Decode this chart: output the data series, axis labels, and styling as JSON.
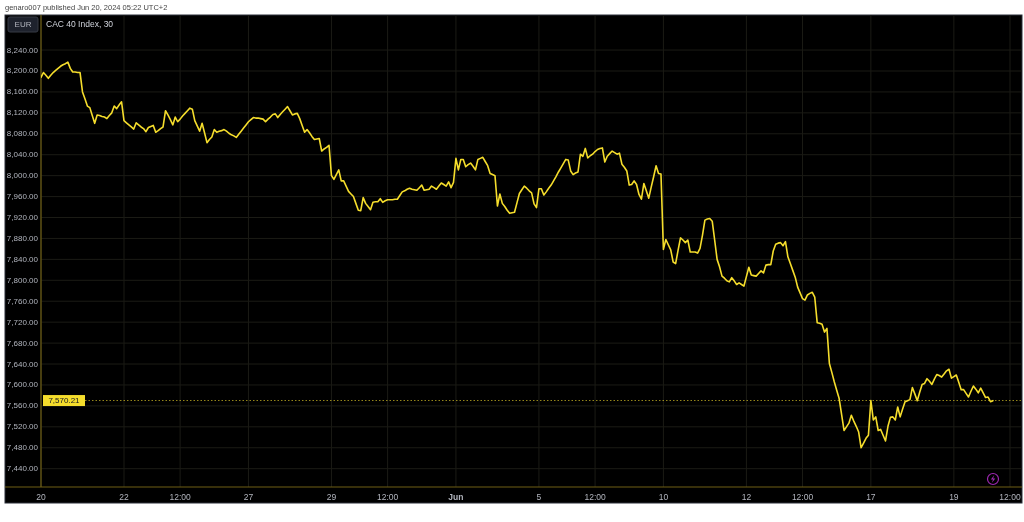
{
  "chart_data": {
    "type": "line",
    "title": "CAC 40 Index, 30",
    "ylabel": "EUR",
    "annotations": [
      "genaro007 published Jun 20, 2024 05:22 UTC+2"
    ],
    "color": "#f5dd2c",
    "grid": true,
    "ylim": [
      7405,
      8307
    ],
    "yticks": [
      {
        "value": 7440,
        "label": "7,440.00"
      },
      {
        "value": 7480,
        "label": "7,480.00"
      },
      {
        "value": 7520,
        "label": "7,520.00"
      },
      {
        "value": 7560,
        "label": "7,560.00"
      },
      {
        "value": 7600,
        "label": "7,600.00"
      },
      {
        "value": 7640,
        "label": "7,640.00"
      },
      {
        "value": 7680,
        "label": "7,680.00"
      },
      {
        "value": 7720,
        "label": "7,720.00"
      },
      {
        "value": 7760,
        "label": "7,760.00"
      },
      {
        "value": 7800,
        "label": "7,800.00"
      },
      {
        "value": 7840,
        "label": "7,840.00"
      },
      {
        "value": 7880,
        "label": "7,880.00"
      },
      {
        "value": 7920,
        "label": "7,920.00"
      },
      {
        "value": 7960,
        "label": "7,960.00"
      },
      {
        "value": 8000,
        "label": "8,000.00"
      },
      {
        "value": 8040,
        "label": "8,040.00"
      },
      {
        "value": 8080,
        "label": "8,080.00"
      },
      {
        "value": 8120,
        "label": "8,120.00"
      },
      {
        "value": 8160,
        "label": "8,160.00"
      },
      {
        "value": 8200,
        "label": "8,200.00"
      },
      {
        "value": 8240,
        "label": "8,240.00"
      }
    ],
    "ref_lines": [
      {
        "axis": "y",
        "value": 7570.21,
        "label": "7,570.21",
        "color": "#f5dd2c",
        "line_style": "dotted"
      }
    ],
    "categories": [
      "20",
      null,
      null,
      null,
      null,
      null,
      null,
      null,
      null,
      null,
      null,
      null,
      null,
      null,
      null,
      null,
      null,
      null,
      null,
      null,
      null,
      null,
      null,
      null,
      null,
      null,
      null,
      null,
      null,
      null,
      null,
      null,
      null,
      null,
      "22",
      null,
      null,
      null,
      null,
      null,
      null,
      null,
      null,
      null,
      null,
      null,
      null,
      null,
      null,
      null,
      null,
      null,
      null,
      null,
      null,
      null,
      null,
      "12:00",
      null,
      null,
      null,
      null,
      null,
      null,
      null,
      null,
      null,
      null,
      null,
      null,
      null,
      null,
      null,
      null,
      null,
      null,
      null,
      null,
      null,
      null,
      null,
      null,
      null,
      null,
      null,
      "27",
      null,
      null,
      null,
      null,
      null,
      null,
      null,
      null,
      null,
      null,
      null,
      null,
      null,
      null,
      null,
      null,
      null,
      null,
      null,
      null,
      null,
      null,
      null,
      null,
      null,
      null,
      null,
      null,
      null,
      null,
      null,
      null,
      null,
      "29",
      null,
      null,
      null,
      null,
      null,
      null,
      null,
      null,
      null,
      null,
      null,
      null,
      null,
      null,
      null,
      null,
      null,
      null,
      null,
      null,
      null,
      null,
      "12:00",
      null,
      null,
      null,
      null,
      null,
      null,
      null,
      null,
      null,
      null,
      null,
      null,
      null,
      null,
      null,
      null,
      null,
      null,
      null,
      null,
      null,
      null,
      null,
      null,
      null,
      null,
      null,
      "Jun",
      null,
      null,
      null,
      null,
      null,
      null,
      null,
      null,
      null,
      null,
      null,
      null,
      null,
      null,
      null,
      null,
      null,
      null,
      null,
      null,
      null,
      null,
      null,
      null,
      null,
      null,
      null,
      null,
      null,
      null,
      null,
      null,
      null,
      "5",
      null,
      null,
      null,
      null,
      null,
      null,
      null,
      null,
      null,
      null,
      null,
      null,
      null,
      null,
      null,
      null,
      null,
      null,
      null,
      null,
      null,
      null,
      "12:00",
      null,
      null,
      null,
      null,
      null,
      null,
      null,
      null,
      null,
      null,
      null,
      null,
      null,
      null,
      null,
      null,
      null,
      null,
      null,
      null,
      null,
      null,
      null,
      null,
      null,
      null,
      null,
      "10",
      null,
      null,
      null,
      null,
      null,
      null,
      null,
      null,
      null,
      null,
      null,
      null,
      null,
      null,
      null,
      null,
      null,
      null,
      null,
      null,
      null,
      null,
      null,
      null,
      null,
      null,
      null,
      null,
      null,
      null,
      null,
      null,
      null,
      "12",
      null,
      null,
      null,
      null,
      null,
      null,
      null,
      null,
      null,
      null,
      null,
      null,
      null,
      null,
      null,
      null,
      null,
      null,
      null,
      null,
      null,
      null,
      "12:00",
      null,
      null,
      null,
      null,
      null,
      null,
      null,
      null,
      null,
      null,
      null,
      null,
      null,
      null,
      null,
      null,
      null,
      null,
      null,
      null,
      null,
      null,
      null,
      null,
      null,
      null,
      null,
      "17",
      null,
      null,
      null,
      null,
      null,
      null,
      null,
      null,
      null,
      null,
      null,
      null,
      null,
      null,
      null,
      null,
      null,
      null,
      null,
      null,
      null,
      null,
      null,
      null,
      null,
      null,
      null,
      null,
      null,
      null,
      null,
      null,
      null,
      "19",
      null,
      null,
      null,
      null,
      null,
      null,
      null,
      null,
      null,
      null,
      null,
      null,
      null,
      null,
      null,
      null,
      null,
      null,
      null,
      null,
      null,
      null,
      "12:00"
    ],
    "values": [
      8188,
      8197,
      8192,
      8186,
      8192,
      8197,
      8201,
      8205,
      8209,
      8212,
      8214,
      8217,
      8205,
      8198,
      8198,
      8197,
      8197,
      8160,
      8147,
      8133,
      8130,
      8115,
      8100,
      8116,
      8115,
      8113,
      8112,
      8109,
      8115,
      8120,
      8133,
      8128,
      8135,
      8141,
      8105,
      8101,
      8097,
      8093,
      8089,
      8101,
      8097,
      8093,
      8090,
      8084,
      8092,
      8094,
      8096,
      8083,
      8086,
      8090,
      8093,
      8124,
      8116,
      8107,
      8097,
      8112,
      8103,
      8108,
      8114,
      8119,
      8124,
      8129,
      8127,
      8105,
      8095,
      8085,
      8100,
      8082,
      8063,
      8069,
      8074,
      8088,
      8083,
      8085,
      8086,
      8088,
      8085,
      8081,
      8078,
      8076,
      8073,
      8079,
      8085,
      8091,
      8097,
      8103,
      8107,
      8111,
      8110,
      8110,
      8109,
      8108,
      8103,
      8108,
      8112,
      8117,
      8118,
      8111,
      8117,
      8122,
      8127,
      8132,
      8124,
      8116,
      8118,
      8119,
      8109,
      8096,
      8083,
      8088,
      8082,
      8075,
      8069,
      8070,
      8071,
      8047,
      8051,
      8054,
      8058,
      8000,
      7993,
      8002,
      8011,
      7990,
      7990,
      7980,
      7970,
      7965,
      7960,
      7947,
      7934,
      7933,
      7958,
      7947,
      7941,
      7935,
      7949,
      7950,
      7950,
      7956,
      7949,
      7952,
      7954,
      7954,
      7954,
      7955,
      7955,
      7962,
      7969,
      7971,
      7974,
      7976,
      7974,
      7973,
      7972,
      7977,
      7982,
      7972,
      7973,
      7974,
      7980,
      7977,
      7974,
      7980,
      7986,
      7983,
      7980,
      7988,
      7977,
      7987,
      8033,
      8011,
      8031,
      8031,
      8017,
      8021,
      8024,
      8018,
      8011,
      8031,
      8033,
      8035,
      8027,
      8019,
      8004,
      8002,
      8000,
      7942,
      7965,
      7947,
      7941,
      7934,
      7928,
      7929,
      7930,
      7948,
      7966,
      7973,
      7980,
      7976,
      7971,
      7967,
      7946,
      7939,
      7975,
      7975,
      7963,
      7969,
      7976,
      7982,
      7990,
      7998,
      8007,
      8015,
      8023,
      8031,
      8030,
      8009,
      8002,
      8005,
      8007,
      8041,
      8037,
      8052,
      8034,
      8038,
      8041,
      8046,
      8050,
      8052,
      8053,
      8026,
      8037,
      8042,
      8047,
      8044,
      8041,
      8043,
      8022,
      8016,
      8009,
      7982,
      7983,
      7990,
      7983,
      7964,
      7955,
      7985,
      7971,
      7957,
      7978,
      7998,
      8019,
      8004,
      8003,
      7859,
      7878,
      7868,
      7858,
      7835,
      7832,
      7857,
      7881,
      7877,
      7872,
      7877,
      7854,
      7854,
      7854,
      7852,
      7861,
      7886,
      7915,
      7917,
      7918,
      7913,
      7877,
      7840,
      7826,
      7808,
      7804,
      7799,
      7797,
      7805,
      7799,
      7792,
      7795,
      7792,
      7789,
      7807,
      7825,
      7810,
      7809,
      7808,
      7813,
      7818,
      7814,
      7829,
      7830,
      7830,
      7856,
      7869,
      7871,
      7872,
      7866,
      7874,
      7845,
      7832,
      7819,
      7806,
      7787,
      7776,
      7765,
      7762,
      7772,
      7775,
      7777,
      7768,
      7719,
      7718,
      7716,
      7701,
      7708,
      7641,
      7624,
      7606,
      7590,
      7574,
      7544,
      7513,
      7520,
      7527,
      7542,
      7531,
      7521,
      7510,
      7480,
      7489,
      7498,
      7504,
      7570,
      7533,
      7539,
      7513,
      7515,
      7504,
      7493,
      7521,
      7538,
      7539,
      7533,
      7558,
      7539,
      7554,
      7568,
      7570,
      7572,
      7595,
      7583,
      7570,
      7586,
      7601,
      7603,
      7612,
      7607,
      7601,
      7611,
      7620,
      7618,
      7615,
      7621,
      7627,
      7630,
      7613,
      7616,
      7619,
      7605,
      7591,
      7591,
      7584,
      7577,
      7588,
      7598,
      7592,
      7585,
      7594,
      7585,
      7576,
      7577,
      7568,
      7570,
      null,
      null,
      null,
      null,
      null,
      null,
      null
    ]
  }
}
